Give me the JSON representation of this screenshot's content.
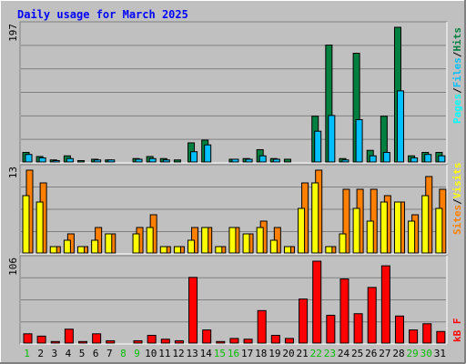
{
  "title": "Daily usage for March 2025",
  "colors": {
    "background": "#c0c0c0",
    "title": "#0000ff",
    "hits": "#008040",
    "files": "#00c0ff",
    "pages": "#00ffff",
    "visits": "#ff8000",
    "sites": "#ffff00",
    "kbytes": "#ff0000",
    "weekday": "#000000",
    "weekend": "#00c000"
  },
  "legend": {
    "pages": "Pages",
    "files": "Files",
    "hits": "Hits",
    "sites": "Sites",
    "visits": "Visits",
    "kbytes": "kB F",
    "sep": "/"
  },
  "chart_data": [
    {
      "type": "bar",
      "panel": "hits-files-pages",
      "max_label": "197",
      "ylim": [
        0,
        197
      ],
      "series": [
        {
          "name": "Hits",
          "values": [
            14,
            8,
            3,
            9,
            2,
            4,
            3,
            0,
            5,
            8,
            5,
            3,
            28,
            32,
            0,
            4,
            5,
            18,
            5,
            4,
            0,
            67,
            171,
            5,
            159,
            17,
            67,
            197,
            9,
            14,
            14
          ]
        },
        {
          "name": "Files",
          "values": [
            11,
            6,
            2,
            5,
            1,
            3,
            3,
            0,
            4,
            5,
            3,
            1,
            15,
            25,
            0,
            4,
            4,
            9,
            4,
            1,
            0,
            45,
            68,
            3,
            62,
            9,
            14,
            104,
            6,
            11,
            9
          ]
        },
        {
          "name": "Pages",
          "values": [
            0,
            0,
            0,
            0,
            0,
            0,
            0,
            0,
            0,
            0,
            0,
            0,
            0,
            0,
            0,
            0,
            0,
            0,
            0,
            0,
            0,
            0,
            0,
            0,
            0,
            0,
            0,
            0,
            0,
            0,
            0
          ]
        }
      ]
    },
    {
      "type": "bar",
      "panel": "visits-sites",
      "max_label": "13",
      "ylim": [
        0,
        13
      ],
      "series": [
        {
          "name": "Visits",
          "values": [
            13,
            11,
            1,
            3,
            1,
            4,
            3,
            0,
            4,
            6,
            1,
            1,
            4,
            4,
            1,
            4,
            3,
            5,
            4,
            1,
            11,
            13,
            1,
            10,
            10,
            10,
            9,
            8,
            6,
            12,
            10
          ]
        },
        {
          "name": "Sites",
          "values": [
            9,
            8,
            1,
            2,
            1,
            2,
            3,
            0,
            3,
            4,
            1,
            1,
            2,
            4,
            1,
            4,
            3,
            4,
            2,
            1,
            7,
            11,
            1,
            3,
            7,
            5,
            8,
            8,
            5,
            9,
            7
          ]
        }
      ]
    },
    {
      "type": "bar",
      "panel": "kbytes",
      "max_label": "106",
      "ylim": [
        0,
        106
      ],
      "series": [
        {
          "name": "kB F",
          "values": [
            12,
            9,
            2,
            18,
            2,
            12,
            3,
            0,
            3,
            10,
            5,
            3,
            85,
            17,
            2,
            6,
            5,
            42,
            10,
            6,
            57,
            106,
            36,
            83,
            38,
            72,
            100,
            35,
            17,
            25,
            15
          ]
        }
      ]
    }
  ],
  "x_labels": [
    "1",
    "2",
    "3",
    "4",
    "5",
    "6",
    "7",
    "8",
    "9",
    "10",
    "11",
    "12",
    "13",
    "14",
    "15",
    "16",
    "17",
    "18",
    "19",
    "20",
    "21",
    "22",
    "23",
    "24",
    "25",
    "26",
    "27",
    "28",
    "29",
    "30",
    "31"
  ],
  "weekend_days": [
    1,
    8,
    9,
    15,
    16,
    22,
    23,
    29,
    30
  ]
}
